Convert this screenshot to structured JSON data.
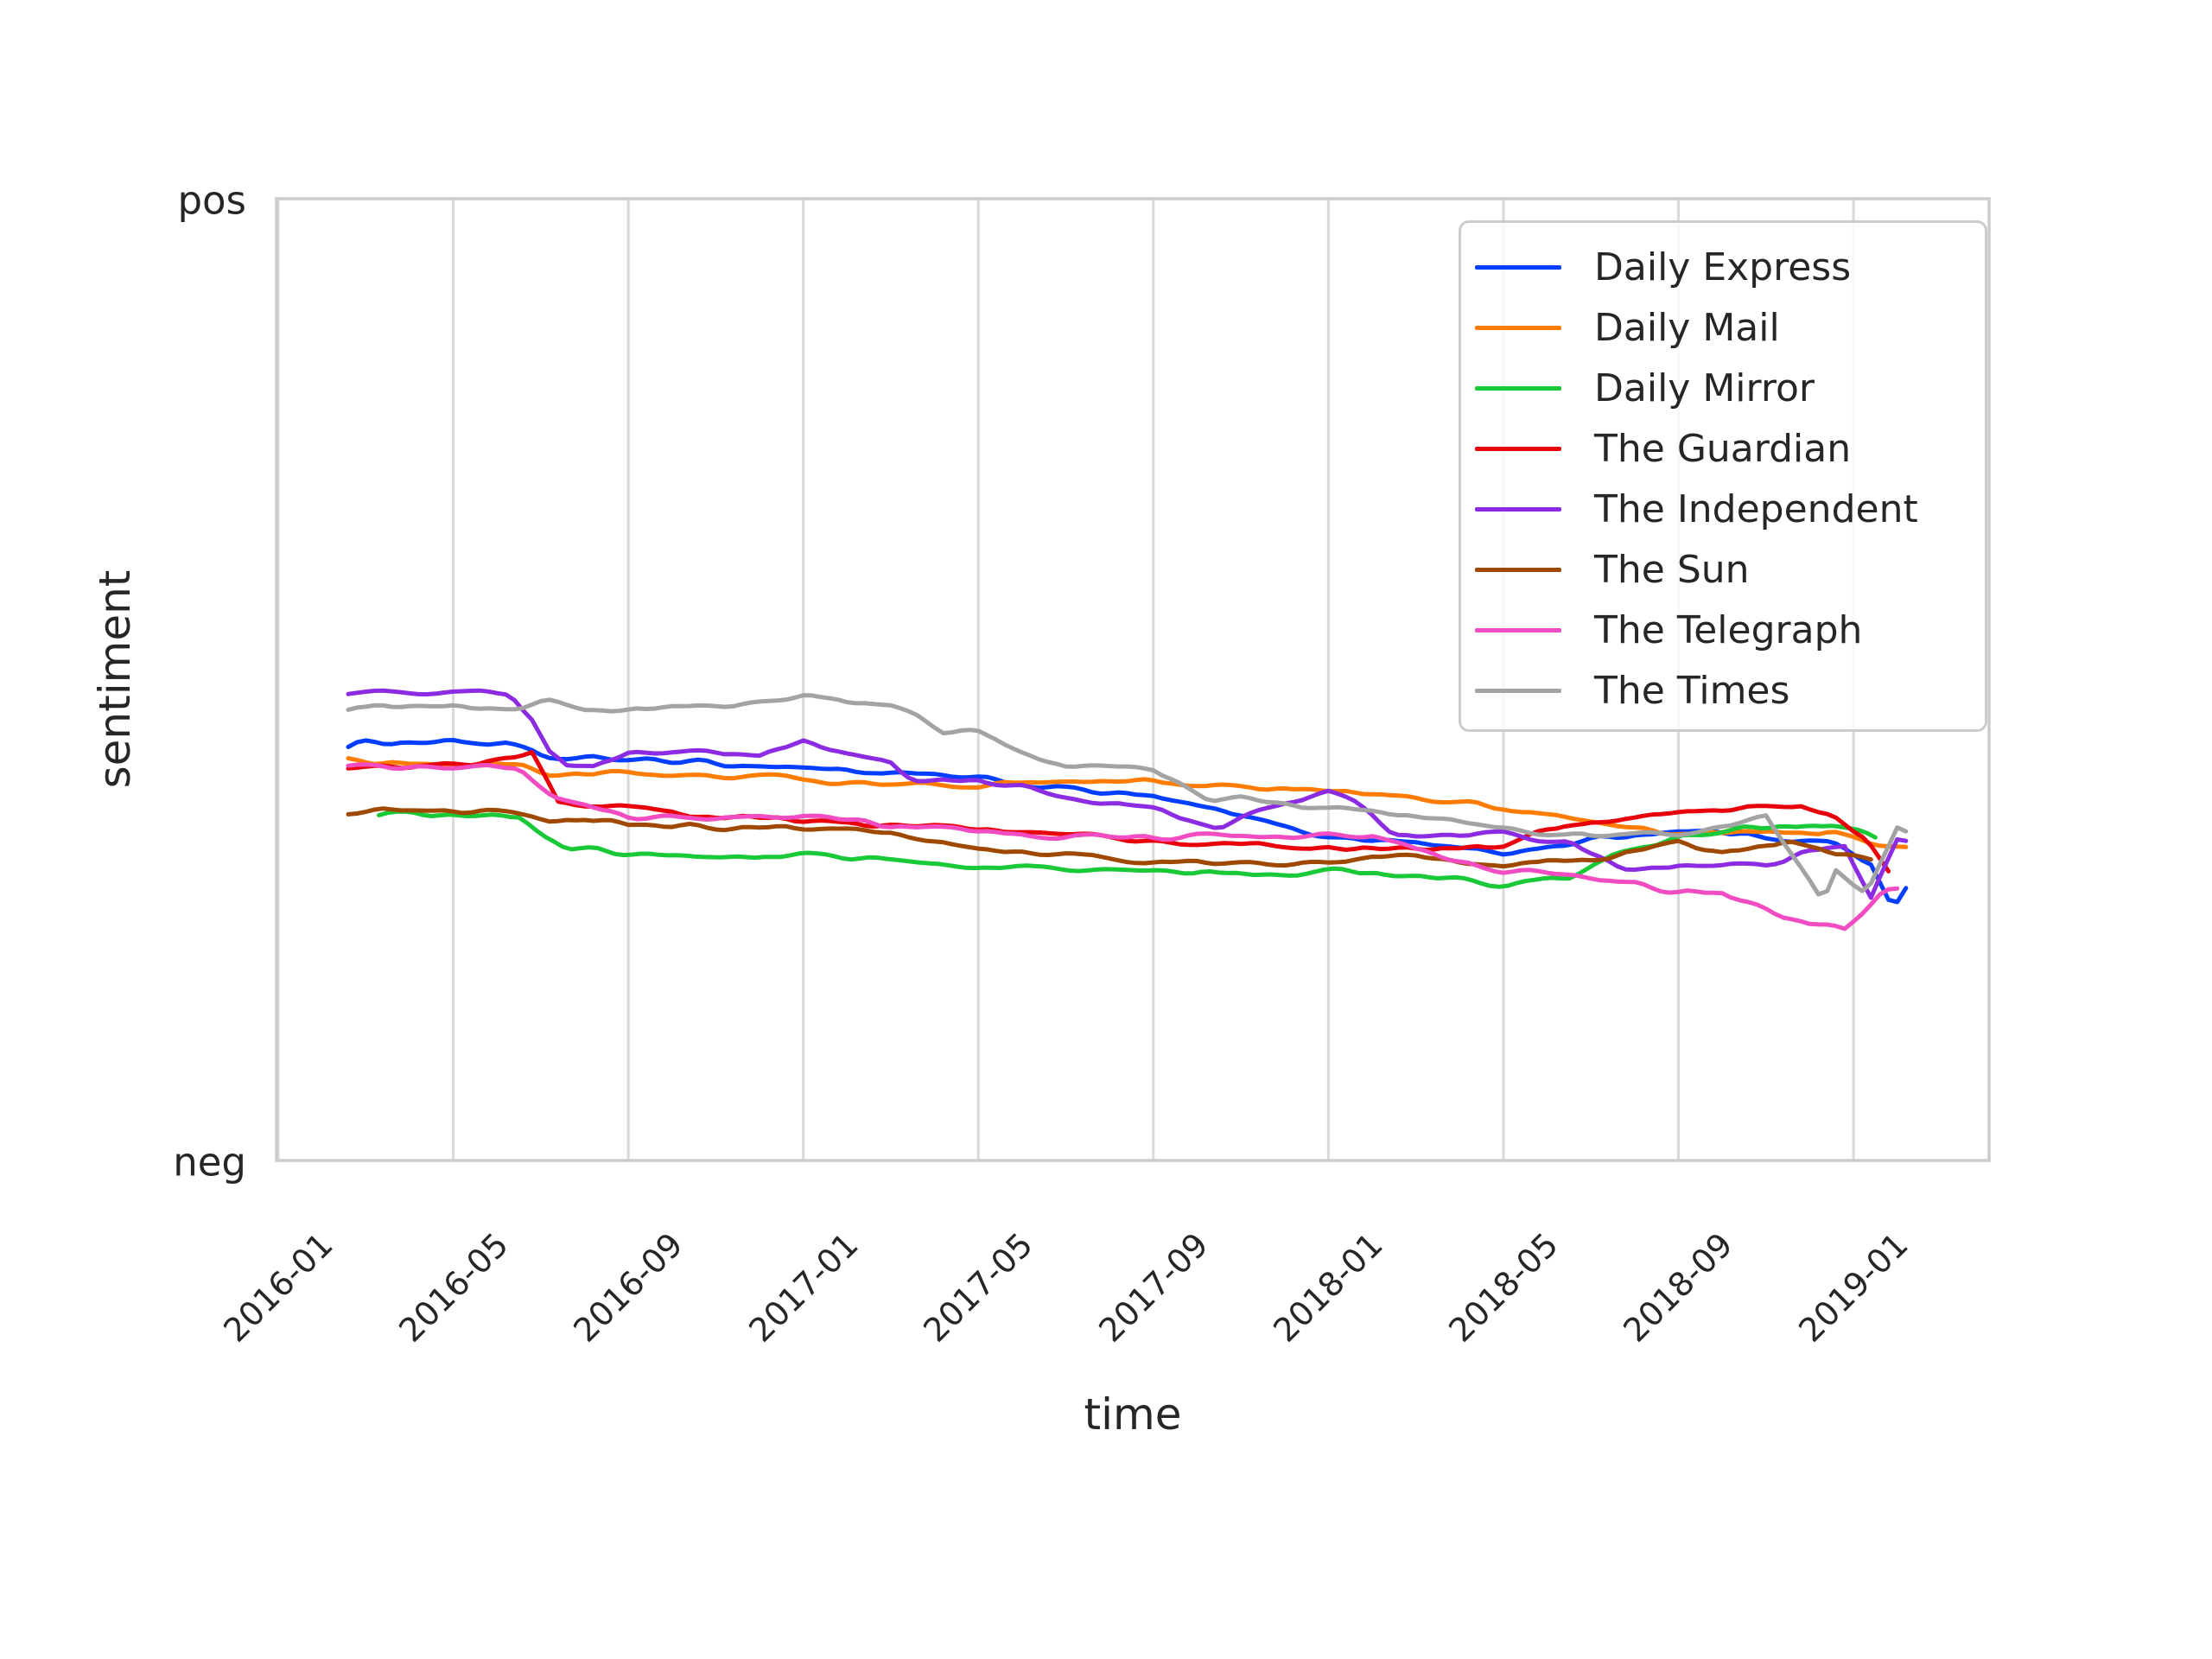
{
  "axes": {
    "xlabel": "time",
    "ylabel": "sentiment",
    "ytick_top": "pos",
    "ytick_bottom": "neg",
    "xtick_labels": [
      "2016-01",
      "2016-05",
      "2016-09",
      "2017-01",
      "2017-05",
      "2017-09",
      "2018-01",
      "2018-05",
      "2018-09",
      "2019-01"
    ]
  },
  "style": {
    "background": "#ffffff",
    "grid_color": "#d9d9d9",
    "spine_color": "#cccccc",
    "text_color": "#262626",
    "line_width": 5
  },
  "legend": {
    "entries": [
      {
        "label": "Daily Express",
        "color": "#023EFF"
      },
      {
        "label": "Daily Mail",
        "color": "#FF7C00"
      },
      {
        "label": "Daily Mirror",
        "color": "#1AC938"
      },
      {
        "label": "The Guardian",
        "color": "#E8000B"
      },
      {
        "label": "The Independent",
        "color": "#8B2BE2"
      },
      {
        "label": "The Sun",
        "color": "#9F4800"
      },
      {
        "label": "The Telegraph",
        "color": "#F14CC1"
      },
      {
        "label": "The Times",
        "color": "#A3A3A3"
      }
    ]
  },
  "chart_data": {
    "type": "line",
    "title": "",
    "xlabel": "time",
    "ylabel": "sentiment",
    "x_unit": "months since 2016-01",
    "x_ticks_months": [
      0,
      4,
      8,
      12,
      16,
      20,
      24,
      28,
      32,
      36
    ],
    "x_tick_labels": [
      "2016-01",
      "2016-05",
      "2016-09",
      "2017-01",
      "2017-05",
      "2017-09",
      "2018-01",
      "2018-05",
      "2018-09",
      "2019-01"
    ],
    "y_range": [
      -1,
      1
    ],
    "y_tick_labels": {
      "top": "pos",
      "bottom": "neg"
    },
    "grid": "vertical-only",
    "legend_position": "upper right",
    "series": [
      {
        "name": "Daily Express",
        "color": "#023EFF",
        "points": [
          [
            1.6,
            -0.13
          ],
          [
            4,
            -0.128
          ],
          [
            5.3,
            -0.136
          ],
          [
            6.1,
            -0.164
          ],
          [
            8,
            -0.166
          ],
          [
            10,
            -0.175
          ],
          [
            12,
            -0.182
          ],
          [
            14,
            -0.195
          ],
          [
            16,
            -0.208
          ],
          [
            18,
            -0.226
          ],
          [
            20,
            -0.245
          ],
          [
            22,
            -0.285
          ],
          [
            24,
            -0.326
          ],
          [
            26,
            -0.339
          ],
          [
            28,
            -0.362
          ],
          [
            30,
            -0.333
          ],
          [
            32,
            -0.312
          ],
          [
            34,
            -0.326
          ],
          [
            35.5,
            -0.339
          ],
          [
            36.4,
            -0.384
          ],
          [
            36.9,
            -0.482
          ],
          [
            37.3,
            -0.42
          ]
        ]
      },
      {
        "name": "Daily Mail",
        "color": "#FF7C00",
        "points": [
          [
            1.6,
            -0.175
          ],
          [
            4,
            -0.175
          ],
          [
            5.5,
            -0.179
          ],
          [
            6.2,
            -0.195
          ],
          [
            8,
            -0.195
          ],
          [
            10,
            -0.2
          ],
          [
            12,
            -0.208
          ],
          [
            14,
            -0.217
          ],
          [
            16,
            -0.222
          ],
          [
            18,
            -0.213
          ],
          [
            20,
            -0.213
          ],
          [
            22,
            -0.222
          ],
          [
            24,
            -0.231
          ],
          [
            26,
            -0.249
          ],
          [
            28,
            -0.267
          ],
          [
            30,
            -0.294
          ],
          [
            32,
            -0.321
          ],
          [
            34,
            -0.315
          ],
          [
            35.5,
            -0.317
          ],
          [
            36.5,
            -0.339
          ],
          [
            37.2,
            -0.36
          ]
        ]
      },
      {
        "name": "Daily Mirror",
        "color": "#1AC938",
        "points": [
          [
            2.3,
            -0.279
          ],
          [
            4,
            -0.283
          ],
          [
            5.5,
            -0.29
          ],
          [
            6.6,
            -0.353
          ],
          [
            8,
            -0.362
          ],
          [
            10,
            -0.369
          ],
          [
            12,
            -0.362
          ],
          [
            14,
            -0.375
          ],
          [
            16,
            -0.385
          ],
          [
            18,
            -0.394
          ],
          [
            20,
            -0.405
          ],
          [
            22,
            -0.402
          ],
          [
            24,
            -0.398
          ],
          [
            26,
            -0.407
          ],
          [
            28,
            -0.429
          ],
          [
            29.5,
            -0.411
          ],
          [
            30.5,
            -0.366
          ],
          [
            32,
            -0.33
          ],
          [
            34,
            -0.306
          ],
          [
            35.5,
            -0.303
          ],
          [
            36.6,
            -0.324
          ]
        ]
      },
      {
        "name": "The Guardian",
        "color": "#E8000B",
        "points": [
          [
            1.6,
            -0.175
          ],
          [
            4,
            -0.182
          ],
          [
            5.4,
            -0.168
          ],
          [
            5.8,
            -0.154
          ],
          [
            6.4,
            -0.258
          ],
          [
            8,
            -0.265
          ],
          [
            10,
            -0.285
          ],
          [
            12,
            -0.294
          ],
          [
            14,
            -0.303
          ],
          [
            16,
            -0.308
          ],
          [
            18,
            -0.321
          ],
          [
            20,
            -0.335
          ],
          [
            22,
            -0.344
          ],
          [
            24,
            -0.351
          ],
          [
            26,
            -0.353
          ],
          [
            28,
            -0.348
          ],
          [
            29,
            -0.312
          ],
          [
            30,
            -0.294
          ],
          [
            32,
            -0.276
          ],
          [
            34,
            -0.263
          ],
          [
            34.8,
            -0.258
          ],
          [
            35.5,
            -0.285
          ],
          [
            36.3,
            -0.335
          ],
          [
            36.8,
            -0.402
          ]
        ]
      },
      {
        "name": "The Independent",
        "color": "#8B2BE2",
        "points": [
          [
            1.6,
            -0.021
          ],
          [
            4,
            -0.024
          ],
          [
            5.3,
            -0.028
          ],
          [
            5.8,
            -0.078
          ],
          [
            6.2,
            -0.15
          ],
          [
            6.6,
            -0.177
          ],
          [
            7.2,
            -0.182
          ],
          [
            8,
            -0.154
          ],
          [
            9,
            -0.146
          ],
          [
            10,
            -0.15
          ],
          [
            11,
            -0.164
          ],
          [
            12,
            -0.132
          ],
          [
            13,
            -0.154
          ],
          [
            14,
            -0.168
          ],
          [
            14.5,
            -0.209
          ],
          [
            16,
            -0.209
          ],
          [
            17,
            -0.222
          ],
          [
            18,
            -0.24
          ],
          [
            19,
            -0.258
          ],
          [
            20,
            -0.272
          ],
          [
            21,
            -0.294
          ],
          [
            21.5,
            -0.303
          ],
          [
            22.5,
            -0.267
          ],
          [
            24,
            -0.235
          ],
          [
            24.5,
            -0.244
          ],
          [
            25.5,
            -0.321
          ],
          [
            26.5,
            -0.33
          ],
          [
            28,
            -0.321
          ],
          [
            29.5,
            -0.339
          ],
          [
            30.7,
            -0.396
          ],
          [
            32,
            -0.384
          ],
          [
            33,
            -0.384
          ],
          [
            34,
            -0.384
          ],
          [
            35,
            -0.357
          ],
          [
            35.8,
            -0.342
          ],
          [
            36.4,
            -0.456
          ],
          [
            37,
            -0.342
          ],
          [
            37.3,
            -0.348
          ]
        ]
      },
      {
        "name": "The Sun",
        "color": "#9F4800",
        "points": [
          [
            1.6,
            -0.269
          ],
          [
            4,
            -0.272
          ],
          [
            5.5,
            -0.276
          ],
          [
            6.3,
            -0.294
          ],
          [
            7,
            -0.285
          ],
          [
            8,
            -0.305
          ],
          [
            10,
            -0.306
          ],
          [
            12,
            -0.308
          ],
          [
            14,
            -0.321
          ],
          [
            16,
            -0.351
          ],
          [
            18,
            -0.366
          ],
          [
            20,
            -0.38
          ],
          [
            22,
            -0.384
          ],
          [
            24,
            -0.387
          ],
          [
            25,
            -0.366
          ],
          [
            26,
            -0.366
          ],
          [
            28,
            -0.389
          ],
          [
            29,
            -0.375
          ],
          [
            30,
            -0.375
          ],
          [
            32,
            -0.342
          ],
          [
            33,
            -0.366
          ],
          [
            34.5,
            -0.335
          ],
          [
            35.5,
            -0.36
          ],
          [
            36.4,
            -0.366
          ]
        ]
      },
      {
        "name": "The Telegraph",
        "color": "#F14CC1",
        "points": [
          [
            1.6,
            -0.179
          ],
          [
            4,
            -0.182
          ],
          [
            5.5,
            -0.186
          ],
          [
            6.3,
            -0.249
          ],
          [
            8,
            -0.285
          ],
          [
            10,
            -0.29
          ],
          [
            12,
            -0.285
          ],
          [
            14,
            -0.303
          ],
          [
            16,
            -0.317
          ],
          [
            18,
            -0.326
          ],
          [
            20,
            -0.33
          ],
          [
            22,
            -0.324
          ],
          [
            24,
            -0.324
          ],
          [
            25,
            -0.321
          ],
          [
            26,
            -0.357
          ],
          [
            28,
            -0.396
          ],
          [
            30,
            -0.407
          ],
          [
            32,
            -0.441
          ],
          [
            33,
            -0.443
          ],
          [
            34.5,
            -0.497
          ],
          [
            35.8,
            -0.522
          ],
          [
            36.7,
            -0.438
          ],
          [
            37.1,
            -0.432
          ]
        ]
      },
      {
        "name": "The Times",
        "color": "#A3A3A3",
        "points": [
          [
            1.6,
            -0.055
          ],
          [
            3,
            -0.06
          ],
          [
            4,
            -0.055
          ],
          [
            5.5,
            -0.066
          ],
          [
            6.1,
            -0.042
          ],
          [
            7,
            -0.06
          ],
          [
            8,
            -0.067
          ],
          [
            9.5,
            -0.057
          ],
          [
            11,
            -0.046
          ],
          [
            12,
            -0.039
          ],
          [
            13.5,
            -0.046
          ],
          [
            14.5,
            -0.064
          ],
          [
            15.2,
            -0.105
          ],
          [
            16,
            -0.109
          ],
          [
            17,
            -0.15
          ],
          [
            18,
            -0.177
          ],
          [
            20,
            -0.186
          ],
          [
            21.3,
            -0.252
          ],
          [
            22,
            -0.249
          ],
          [
            23,
            -0.263
          ],
          [
            24,
            -0.27
          ],
          [
            25,
            -0.276
          ],
          [
            28,
            -0.306
          ],
          [
            30,
            -0.326
          ],
          [
            32,
            -0.321
          ],
          [
            34,
            -0.288
          ],
          [
            35.3,
            -0.461
          ],
          [
            35.6,
            -0.396
          ],
          [
            36.3,
            -0.443
          ],
          [
            37.1,
            -0.294
          ],
          [
            37.3,
            -0.351
          ]
        ]
      }
    ]
  }
}
